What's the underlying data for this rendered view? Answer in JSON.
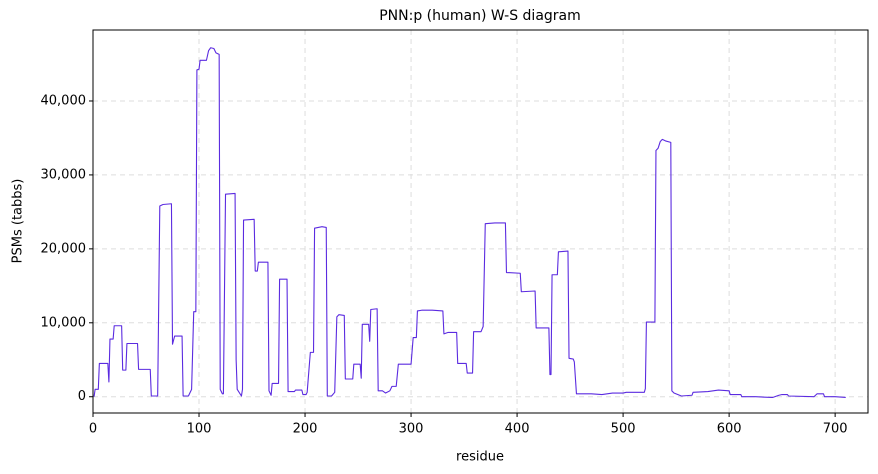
{
  "chart_data": {
    "type": "line",
    "title": "PNN:p (human) W-S diagram",
    "x_label": "residue",
    "y_label": "PSMs (tabbs)",
    "color": "#5b2be0",
    "grid": true,
    "xlim": [
      0,
      731
    ],
    "ylim": [
      -2200,
      49600
    ],
    "xticks": [
      0,
      100,
      200,
      300,
      400,
      500,
      600,
      700
    ],
    "yticks": [
      0,
      {
        "value": 10000,
        "label": "10,000"
      },
      {
        "value": 20000,
        "label": "20,000"
      },
      {
        "value": 30000,
        "label": "30,000"
      },
      {
        "value": 40000,
        "label": "40,000"
      }
    ],
    "x": [
      1,
      2,
      5,
      6,
      14,
      15,
      16,
      19,
      20,
      27,
      28,
      31,
      32,
      42,
      43,
      54,
      55,
      61,
      63,
      66,
      74,
      75,
      77,
      84,
      85,
      90,
      93,
      95,
      97,
      98,
      100,
      101,
      107,
      109,
      111,
      114,
      116,
      119,
      120,
      122,
      123,
      125,
      134,
      135,
      136,
      140,
      141,
      142,
      152,
      153,
      155,
      156,
      165,
      166,
      168,
      169,
      175,
      176,
      183,
      184,
      190,
      191,
      197,
      198,
      201,
      202,
      205,
      208,
      209,
      216,
      220,
      221,
      225,
      228,
      230,
      232,
      237,
      238,
      245,
      246,
      252,
      253,
      254,
      260,
      261,
      262,
      268,
      269,
      273,
      276,
      280,
      282,
      286,
      288,
      300,
      302,
      305,
      306,
      310,
      320,
      330,
      331,
      335,
      343,
      344,
      352,
      353,
      358,
      359,
      366,
      368,
      370,
      379,
      389,
      390,
      403,
      404,
      417,
      418,
      430,
      431,
      432,
      433,
      438,
      439,
      448,
      449,
      453,
      454,
      456,
      470,
      480,
      490,
      500,
      503,
      520,
      521,
      522,
      530,
      531,
      533,
      535,
      537,
      540,
      545,
      546,
      548,
      555,
      565,
      566,
      580,
      590,
      600,
      601,
      611,
      612,
      625,
      640,
      641,
      647,
      650,
      655,
      656,
      680,
      683,
      689,
      690,
      700,
      710
    ],
    "values": [
      0,
      1000,
      1000,
      4500,
      4500,
      2000,
      7800,
      7800,
      9600,
      9600,
      3600,
      3600,
      7200,
      7200,
      3700,
      3700,
      100,
      100,
      25800,
      26000,
      26100,
      7100,
      8200,
      8200,
      100,
      100,
      1000,
      11500,
      11500,
      44200,
      44300,
      45500,
      45500,
      46800,
      47200,
      47100,
      46500,
      46300,
      1000,
      400,
      400,
      27400,
      27500,
      5000,
      1000,
      100,
      1000,
      23900,
      24000,
      17000,
      17000,
      18200,
      18200,
      800,
      200,
      1800,
      1800,
      15900,
      15900,
      700,
      700,
      900,
      900,
      300,
      300,
      600,
      6000,
      6000,
      22800,
      23000,
      22900,
      100,
      100,
      600,
      10800,
      11100,
      11000,
      2400,
      2400,
      4400,
      4400,
      2500,
      9800,
      9800,
      7500,
      11800,
      11900,
      800,
      800,
      500,
      800,
      1400,
      1400,
      4400,
      4400,
      8000,
      8000,
      11600,
      11700,
      11700,
      11600,
      8500,
      8700,
      8700,
      4500,
      4500,
      3200,
      3200,
      8800,
      8800,
      9500,
      23400,
      23500,
      23500,
      16800,
      16700,
      14200,
      14300,
      9300,
      9300,
      3000,
      3000,
      16500,
      16500,
      19600,
      19700,
      5200,
      5100,
      4700,
      400,
      400,
      300,
      500,
      500,
      600,
      600,
      1100,
      10100,
      10100,
      33300,
      33600,
      34500,
      34800,
      34600,
      34400,
      800,
      500,
      100,
      200,
      600,
      700,
      900,
      800,
      300,
      300,
      0,
      0,
      -100,
      -100,
      200,
      300,
      300,
      100,
      0,
      400,
      400,
      0,
      0,
      -100
    ]
  }
}
